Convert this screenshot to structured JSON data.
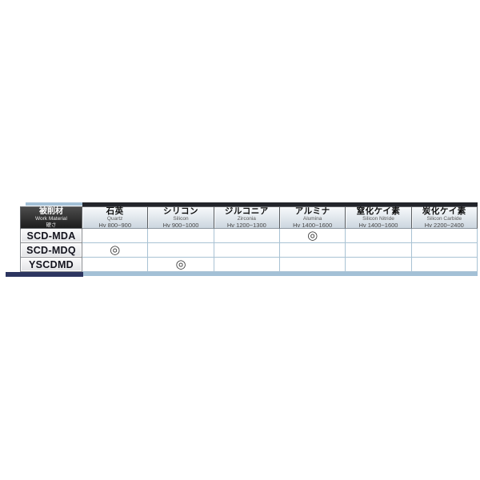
{
  "table": {
    "corner": {
      "title": "被削材",
      "subtitle": "Work Material",
      "note": "硬さ"
    },
    "columns": [
      {
        "name": "石英",
        "en": "Quartz",
        "hardness": "Hv 800~900"
      },
      {
        "name": "シリコン",
        "en": "Silicon",
        "hardness": "Hv 900~1000"
      },
      {
        "name": "ジルコニア",
        "en": "Zirconia",
        "hardness": "Hv 1200~1300"
      },
      {
        "name": "アルミナ",
        "en": "Alumina",
        "hardness": "Hv 1400~1600"
      },
      {
        "name": "窒化ケイ素",
        "en": "Silicon Nitride",
        "hardness": "Hv 1400~1600"
      },
      {
        "name": "炭化ケイ素",
        "en": "Silicon Carbide",
        "hardness": "Hv 2200~2400"
      }
    ],
    "rows": [
      {
        "label": "SCD-MDA",
        "marks": [
          "",
          "",
          "",
          "◎",
          "",
          ""
        ]
      },
      {
        "label": "SCD-MDQ",
        "marks": [
          "◎",
          "",
          "",
          "",
          "",
          ""
        ]
      },
      {
        "label": "YSCDMD",
        "marks": [
          "",
          "◎",
          "",
          "",
          "",
          ""
        ]
      }
    ],
    "mark_symbol": "◎",
    "colors": {
      "accent_dark": "#23252b",
      "accent_navy": "#2c3560",
      "accent_lightblue": "#a3c0d6",
      "grid_blue": "#a9c2d4",
      "corner_bg": "#2e2e2e"
    }
  }
}
